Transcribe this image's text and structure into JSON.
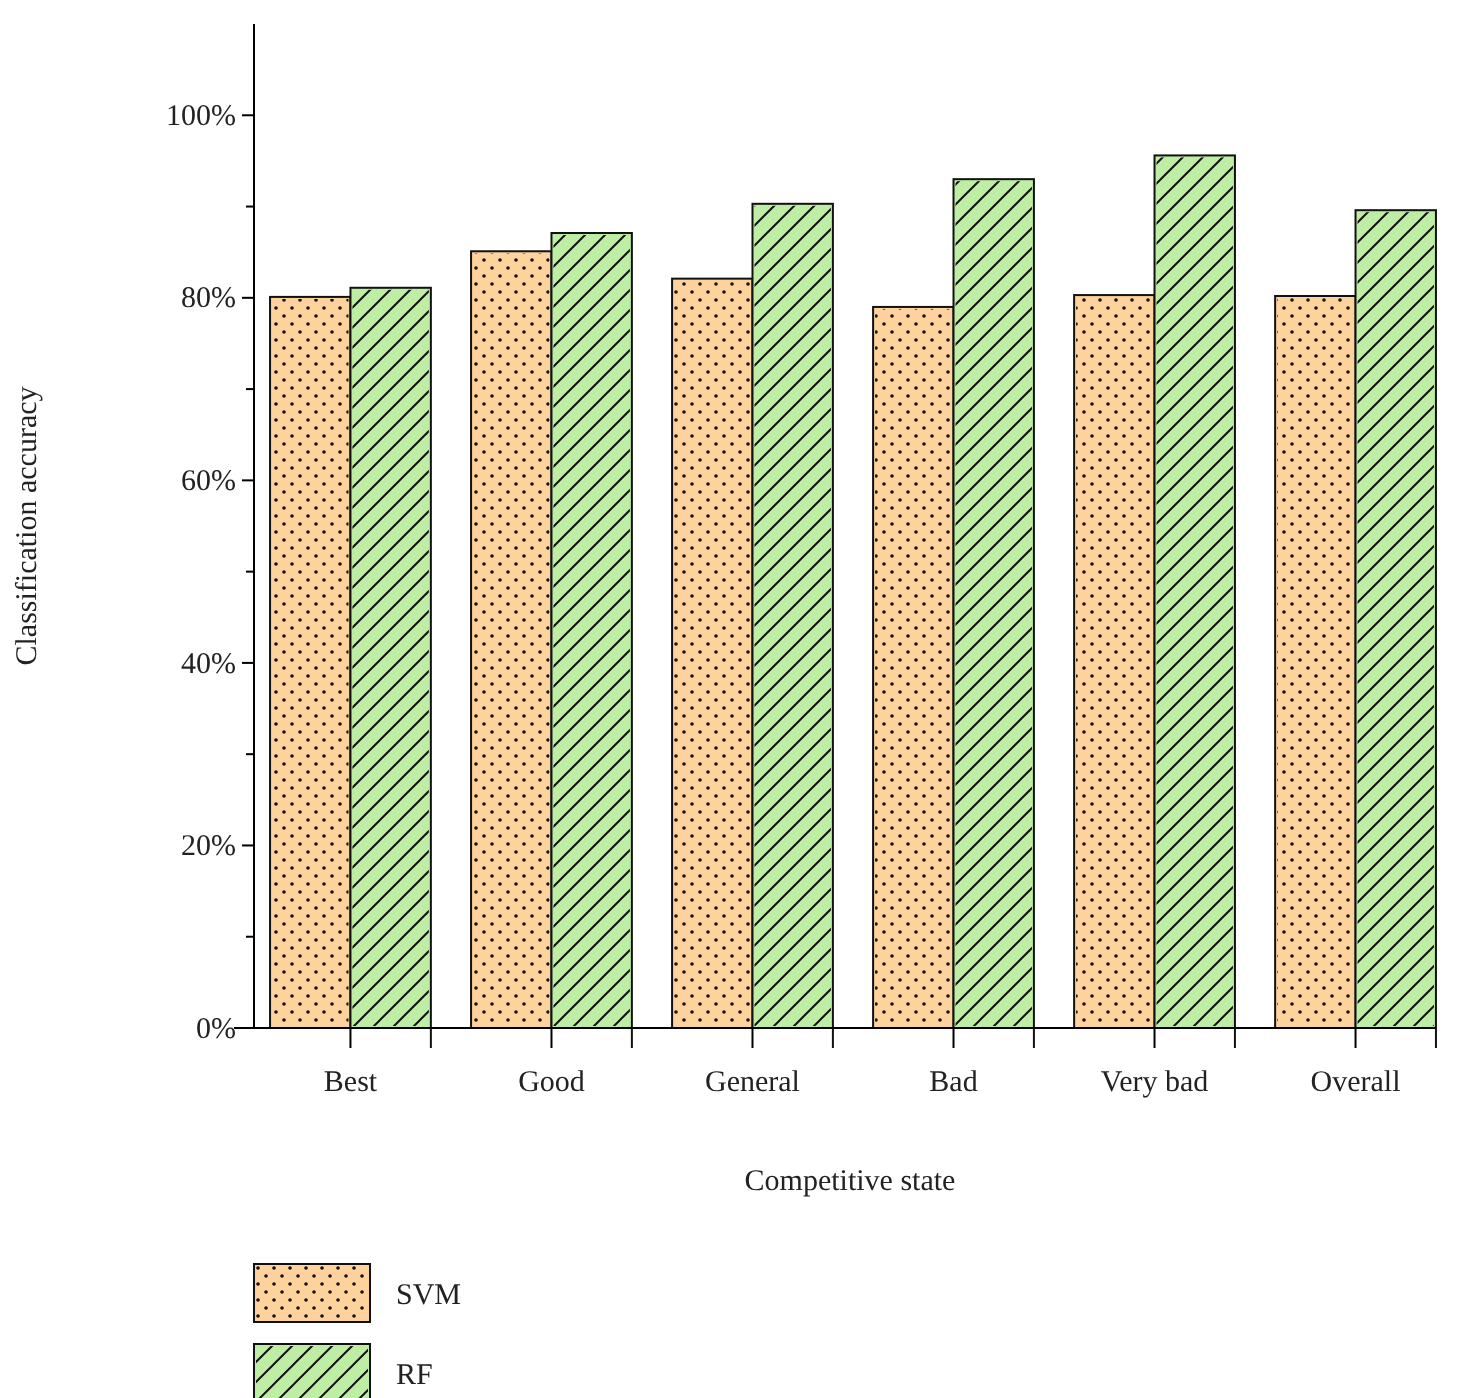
{
  "chart_data": {
    "type": "bar",
    "xlabel": "Competitive state",
    "ylabel": "Classification accuracy",
    "categories": [
      "Best",
      "Good",
      "General",
      "Bad",
      "Very bad",
      "Overall"
    ],
    "series": [
      {
        "name": "SVM",
        "color": "#fdd29c",
        "values": [
          80.1,
          85.1,
          82.1,
          79.0,
          80.3,
          80.2
        ]
      },
      {
        "name": "RF",
        "color": "#bdeea3",
        "values": [
          81.1,
          87.1,
          90.3,
          93.0,
          95.6,
          89.6
        ]
      }
    ],
    "ylim": [
      0,
      110
    ],
    "yticks": [
      {
        "value": 0,
        "label": "0%"
      },
      {
        "value": 10,
        "label": null
      },
      {
        "value": 20,
        "label": "20%"
      },
      {
        "value": 30,
        "label": null
      },
      {
        "value": 40,
        "label": "40%"
      },
      {
        "value": 50,
        "label": null
      },
      {
        "value": 60,
        "label": "60%"
      },
      {
        "value": 70,
        "label": null
      },
      {
        "value": 80,
        "label": "80%"
      },
      {
        "value": 90,
        "label": null
      },
      {
        "value": 100,
        "label": "100%"
      }
    ],
    "legend": "bottom left",
    "grid": false
  }
}
